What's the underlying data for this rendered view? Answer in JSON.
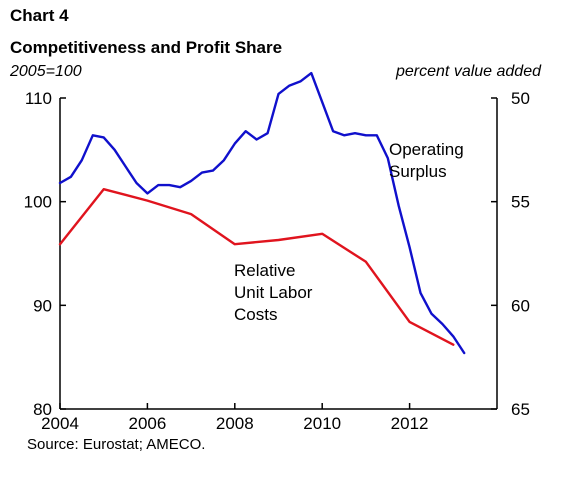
{
  "header": {
    "chart_number": "Chart 4",
    "title": "Competitiveness and Profit Share",
    "left_unit": "2005=100",
    "right_unit": "percent value added"
  },
  "source": "Source: Eurostat; AMECO.",
  "colors": {
    "ulc": "#e0141e",
    "surplus": "#1010cc",
    "axis": "#000000"
  },
  "chart_data": {
    "type": "line",
    "title": "Competitiveness and Profit Share",
    "x_range": [
      2004,
      2014
    ],
    "x_ticks": [
      2004,
      2006,
      2008,
      2010,
      2012
    ],
    "left_axis": {
      "label": "2005=100",
      "range": [
        80,
        110
      ],
      "ticks": [
        80,
        90,
        100,
        110
      ]
    },
    "right_axis": {
      "label": "percent value added",
      "range": [
        65,
        50
      ],
      "inverted": true,
      "ticks": [
        50,
        55,
        60,
        65
      ]
    },
    "grid": false,
    "series": [
      {
        "name": "Relative Unit Labor Costs",
        "axis": "left",
        "color": "#e0141e",
        "label_lines": [
          "Relative",
          "Unit Labor",
          "Costs"
        ],
        "points": [
          [
            2004.0,
            95.9
          ],
          [
            2005.0,
            101.2
          ],
          [
            2006.0,
            100.1
          ],
          [
            2007.0,
            98.8
          ],
          [
            2008.0,
            95.9
          ],
          [
            2009.0,
            96.3
          ],
          [
            2010.0,
            96.9
          ],
          [
            2011.0,
            94.2
          ],
          [
            2012.0,
            88.4
          ],
          [
            2013.0,
            86.2
          ]
        ]
      },
      {
        "name": "Operating Surplus",
        "axis": "right",
        "color": "#1010cc",
        "label_lines": [
          "Operating",
          "Surplus"
        ],
        "points": [
          [
            2004.0,
            54.1
          ],
          [
            2004.25,
            53.8
          ],
          [
            2004.5,
            53.0
          ],
          [
            2004.75,
            51.8
          ],
          [
            2005.0,
            51.9
          ],
          [
            2005.25,
            52.5
          ],
          [
            2005.5,
            53.3
          ],
          [
            2005.75,
            54.1
          ],
          [
            2006.0,
            54.6
          ],
          [
            2006.25,
            54.2
          ],
          [
            2006.5,
            54.2
          ],
          [
            2006.75,
            54.3
          ],
          [
            2007.0,
            54.0
          ],
          [
            2007.25,
            53.6
          ],
          [
            2007.5,
            53.5
          ],
          [
            2007.75,
            53.0
          ],
          [
            2008.0,
            52.2
          ],
          [
            2008.25,
            51.6
          ],
          [
            2008.5,
            52.0
          ],
          [
            2008.75,
            51.7
          ],
          [
            2009.0,
            49.8
          ],
          [
            2009.25,
            49.4
          ],
          [
            2009.5,
            49.2
          ],
          [
            2009.75,
            48.8
          ],
          [
            2010.0,
            50.2
          ],
          [
            2010.25,
            51.6
          ],
          [
            2010.5,
            51.8
          ],
          [
            2010.75,
            51.7
          ],
          [
            2011.0,
            51.8
          ],
          [
            2011.25,
            51.8
          ],
          [
            2011.5,
            52.9
          ],
          [
            2011.75,
            55.2
          ],
          [
            2012.0,
            57.2
          ],
          [
            2012.25,
            59.4
          ],
          [
            2012.5,
            60.4
          ],
          [
            2012.75,
            60.9
          ],
          [
            2013.0,
            61.5
          ],
          [
            2013.25,
            62.3
          ]
        ]
      }
    ]
  }
}
